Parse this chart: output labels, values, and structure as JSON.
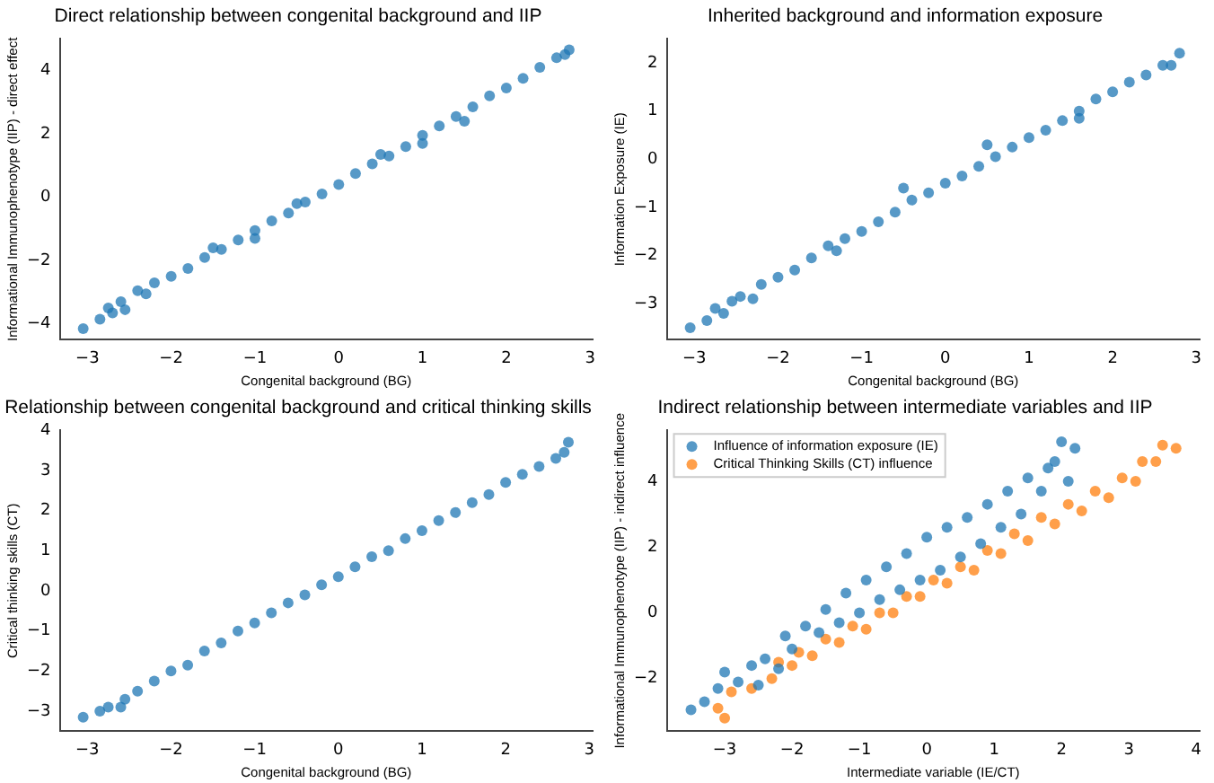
{
  "chart_data": [
    {
      "type": "scatter",
      "title": "Direct relationship between congenital background and IIP",
      "xlabel": "Congenital background (BG)",
      "ylabel": "Informational Immunophenotype (IIP) - direct effect",
      "color": "#1f77b4",
      "marker": "circle",
      "grid": false,
      "legend": false,
      "x": [
        -3.05,
        -2.85,
        -2.75,
        -2.7,
        -2.6,
        -2.55,
        -2.4,
        -2.3,
        -2.2,
        -2.0,
        -1.8,
        -1.6,
        -1.5,
        -1.4,
        -1.2,
        -1.0,
        -1.0,
        -0.8,
        -0.6,
        -0.5,
        -0.4,
        -0.2,
        0,
        0.2,
        0.4,
        0.5,
        0.6,
        0.8,
        1.0,
        1.0,
        1.2,
        1.4,
        1.5,
        1.6,
        1.8,
        2.0,
        2.2,
        2.4,
        2.6,
        2.7,
        2.75
      ],
      "values": [
        -4.15,
        -3.85,
        -3.5,
        -3.65,
        -3.3,
        -3.55,
        -2.95,
        -3.05,
        -2.7,
        -2.5,
        -2.25,
        -1.9,
        -1.6,
        -1.65,
        -1.35,
        -1.05,
        -1.3,
        -0.75,
        -0.5,
        -0.2,
        -0.15,
        0.1,
        0.4,
        0.75,
        1.05,
        1.35,
        1.3,
        1.6,
        1.95,
        1.7,
        2.25,
        2.55,
        2.4,
        2.85,
        3.2,
        3.45,
        3.75,
        4.1,
        4.4,
        4.5,
        4.65
      ],
      "xlim": [
        -3.33,
        3.03
      ],
      "ylim": [
        -4.5,
        5.0
      ],
      "xticks": [
        -3,
        -2,
        -1,
        0,
        1,
        2,
        3
      ],
      "yticks": [
        -4,
        -2,
        0,
        2,
        4
      ]
    },
    {
      "type": "scatter",
      "title": "Inherited background and information exposure",
      "xlabel": "Congenital background (BG)",
      "ylabel": "Information Exposure (IE)",
      "color": "#1f77b4",
      "marker": "circle",
      "grid": false,
      "legend": false,
      "x": [
        -3.05,
        -2.85,
        -2.75,
        -2.65,
        -2.55,
        -2.45,
        -2.3,
        -2.2,
        -2.0,
        -1.8,
        -1.6,
        -1.4,
        -1.3,
        -1.2,
        -1.0,
        -0.8,
        -0.6,
        -0.5,
        -0.4,
        -0.2,
        0,
        0.2,
        0.4,
        0.5,
        0.6,
        0.8,
        1.0,
        1.2,
        1.4,
        1.6,
        1.6,
        1.8,
        2.0,
        2.2,
        2.4,
        2.6,
        2.7,
        2.8
      ],
      "values": [
        -3.5,
        -3.35,
        -3.1,
        -3.2,
        -2.95,
        -2.85,
        -2.9,
        -2.6,
        -2.45,
        -2.3,
        -2.05,
        -1.8,
        -1.9,
        -1.65,
        -1.5,
        -1.3,
        -1.1,
        -0.6,
        -0.85,
        -0.7,
        -0.5,
        -0.35,
        -0.15,
        0.3,
        0.05,
        0.25,
        0.45,
        0.6,
        0.8,
        1.0,
        0.85,
        1.25,
        1.4,
        1.6,
        1.75,
        1.95,
        1.95,
        2.2
      ],
      "xlim": [
        -3.33,
        3.04
      ],
      "ylim": [
        -3.75,
        2.5
      ],
      "xticks": [
        -3,
        -2,
        -1,
        0,
        1,
        2,
        3
      ],
      "yticks": [
        -3,
        -2,
        -1,
        0,
        1,
        2
      ]
    },
    {
      "type": "scatter",
      "title": "Relationship between congenital background and critical thinking skills",
      "xlabel": "Congenital background (BG)",
      "ylabel": "Critical thinking skills (CT)",
      "color": "#1f77b4",
      "marker": "circle",
      "grid": false,
      "legend": false,
      "x": [
        -3.05,
        -2.85,
        -2.75,
        -2.6,
        -2.55,
        -2.4,
        -2.2,
        -2.0,
        -1.8,
        -1.6,
        -1.4,
        -1.2,
        -1.0,
        -0.8,
        -0.6,
        -0.4,
        -0.2,
        0,
        0.2,
        0.4,
        0.6,
        0.8,
        1.0,
        1.2,
        1.4,
        1.6,
        1.8,
        2.0,
        2.2,
        2.4,
        2.6,
        2.7,
        2.75
      ],
      "values": [
        -3.15,
        -3.0,
        -2.9,
        -2.9,
        -2.7,
        -2.5,
        -2.25,
        -2.0,
        -1.85,
        -1.5,
        -1.3,
        -1.0,
        -0.8,
        -0.55,
        -0.3,
        -0.1,
        0.15,
        0.35,
        0.6,
        0.85,
        1.0,
        1.3,
        1.5,
        1.75,
        1.95,
        2.2,
        2.4,
        2.7,
        2.9,
        3.1,
        3.3,
        3.45,
        3.7
      ],
      "xlim": [
        -3.33,
        3.04
      ],
      "ylim": [
        -3.5,
        4.0
      ],
      "xticks": [
        -3,
        -2,
        -1,
        0,
        1,
        2,
        3
      ],
      "yticks": [
        -3,
        -2,
        -1,
        0,
        1,
        2,
        3,
        4
      ]
    },
    {
      "type": "scatter",
      "title": "Indirect relationship between intermediate variables and IIP",
      "xlabel": "Intermediate variable (IE/CT)",
      "ylabel": "Informational Immunophenotype (IIP) - indirect influence",
      "marker": "circle",
      "grid": false,
      "legend": "top left",
      "series": [
        {
          "name": "Influence of information exposure (IE)",
          "color": "#1f77b4",
          "x": [
            -3.5,
            -3.3,
            -3.1,
            -3.0,
            -2.8,
            -2.6,
            -2.5,
            -2.4,
            -2.2,
            -2.1,
            -2.0,
            -1.8,
            -1.6,
            -1.5,
            -1.3,
            -1.2,
            -1.0,
            -0.9,
            -0.7,
            -0.6,
            -0.4,
            -0.3,
            -0.1,
            0,
            0.2,
            0.3,
            0.5,
            0.6,
            0.8,
            0.9,
            1.1,
            1.2,
            1.4,
            1.5,
            1.7,
            1.8,
            1.9,
            2.0,
            2.1,
            2.2
          ],
          "values": [
            -2.95,
            -2.7,
            -2.3,
            -1.8,
            -2.1,
            -1.6,
            -2.2,
            -1.4,
            -1.7,
            -0.7,
            -1.1,
            -0.4,
            -0.6,
            0.1,
            -0.3,
            0.6,
            0.0,
            1.0,
            0.4,
            1.4,
            0.7,
            1.8,
            1.0,
            2.3,
            1.3,
            2.6,
            1.7,
            2.9,
            2.1,
            3.3,
            2.6,
            3.7,
            3.0,
            4.1,
            3.7,
            4.4,
            4.6,
            5.2,
            4.0,
            5.0
          ]
        },
        {
          "name": "Critical Thinking Skills (CT) influence",
          "color": "#ff7f0e",
          "x": [
            -3.1,
            -3.0,
            -2.9,
            -2.6,
            -2.3,
            -2.2,
            -2.0,
            -1.9,
            -1.7,
            -1.5,
            -1.3,
            -1.1,
            -0.9,
            -0.7,
            -0.5,
            -0.3,
            -0.1,
            0.1,
            0.3,
            0.5,
            0.7,
            0.9,
            1.1,
            1.3,
            1.5,
            1.7,
            1.9,
            2.1,
            2.3,
            2.5,
            2.7,
            2.9,
            3.1,
            3.2,
            3.4,
            3.5,
            3.7
          ],
          "values": [
            -2.9,
            -3.2,
            -2.4,
            -2.3,
            -2.0,
            -1.5,
            -1.6,
            -1.2,
            -1.3,
            -0.8,
            -0.9,
            -0.4,
            -0.5,
            0.0,
            0.0,
            0.5,
            0.5,
            1.0,
            0.9,
            1.4,
            1.3,
            1.9,
            1.8,
            2.4,
            2.2,
            2.9,
            2.7,
            3.3,
            3.1,
            3.7,
            3.5,
            4.1,
            4.0,
            4.6,
            4.6,
            5.1,
            5.0
          ]
        }
      ],
      "xlim": [
        -3.86,
        4.05
      ],
      "ylim": [
        -3.6,
        5.55
      ],
      "xticks": [
        -3,
        -2,
        -1,
        0,
        1,
        2,
        3,
        4
      ],
      "yticks": [
        -2,
        0,
        2,
        4
      ]
    }
  ]
}
